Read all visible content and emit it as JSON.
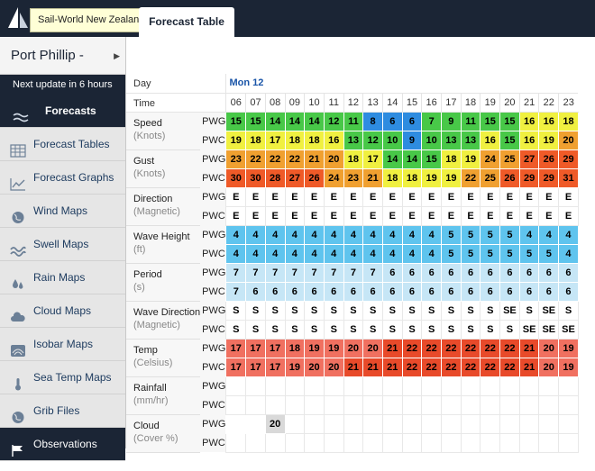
{
  "header": {
    "tooltip": "Sail-World New Zealand",
    "tab": "Forecast Table"
  },
  "sidebar": {
    "location": "Port Phillip -",
    "next_update": "Next update in 6 hours",
    "items": [
      {
        "label": "Forecasts",
        "icon": "forecasts-icon",
        "active": true
      },
      {
        "label": "Forecast Tables",
        "icon": "table-icon"
      },
      {
        "label": "Forecast Graphs",
        "icon": "graph-icon"
      },
      {
        "label": "Wind Maps",
        "icon": "globe-icon"
      },
      {
        "label": "Swell Maps",
        "icon": "swell-icon"
      },
      {
        "label": "Rain Maps",
        "icon": "rain-icon"
      },
      {
        "label": "Cloud Maps",
        "icon": "cloud-icon"
      },
      {
        "label": "Isobar Maps",
        "icon": "isobar-icon"
      },
      {
        "label": "Sea Temp Maps",
        "icon": "thermometer-icon"
      },
      {
        "label": "Grib Files",
        "icon": "globe-icon"
      },
      {
        "label": "Observations",
        "icon": "flag-icon",
        "bottom": true
      }
    ]
  },
  "table": {
    "day_label": "Day",
    "day": "Mon 12",
    "time_label": "Time",
    "hours": [
      "06",
      "07",
      "08",
      "09",
      "10",
      "11",
      "12",
      "13",
      "14",
      "15",
      "16",
      "17",
      "18",
      "19",
      "20",
      "21",
      "22",
      "23"
    ],
    "rows": [
      {
        "label": "Speed",
        "unit": "(Knots)",
        "models": [
          {
            "model": "PWG",
            "values": [
              "15",
              "15",
              "14",
              "14",
              "14",
              "12",
              "11",
              "8",
              "6",
              "6",
              "7",
              "9",
              "11",
              "15",
              "15",
              "16",
              "16",
              "18"
            ],
            "colors": [
              "#48c848",
              "#48c848",
              "#48c848",
              "#48c848",
              "#48c848",
              "#48c848",
              "#48c848",
              "#2e8ce0",
              "#2e8ce0",
              "#2e8ce0",
              "#48c848",
              "#48c848",
              "#48c848",
              "#48c848",
              "#48c848",
              "#f0f040",
              "#f0f040",
              "#f0f040"
            ]
          },
          {
            "model": "PWC",
            "values": [
              "19",
              "18",
              "17",
              "18",
              "18",
              "16",
              "13",
              "12",
              "10",
              "9",
              "10",
              "13",
              "13",
              "16",
              "15",
              "16",
              "19",
              "20"
            ],
            "colors": [
              "#f0f040",
              "#f0f040",
              "#f0f040",
              "#f0f040",
              "#f0f040",
              "#f0f040",
              "#48c848",
              "#48c848",
              "#48c848",
              "#2e8ce0",
              "#48c848",
              "#48c848",
              "#48c848",
              "#f0f040",
              "#48c848",
              "#f0f040",
              "#f0f040",
              "#f0a030"
            ]
          }
        ]
      },
      {
        "label": "Gust",
        "unit": "(Knots)",
        "models": [
          {
            "model": "PWG",
            "values": [
              "23",
              "22",
              "22",
              "22",
              "21",
              "20",
              "18",
              "17",
              "14",
              "14",
              "15",
              "18",
              "19",
              "24",
              "25",
              "27",
              "26",
              "29"
            ],
            "colors": [
              "#f0a030",
              "#f0a030",
              "#f0a030",
              "#f0a030",
              "#f0a030",
              "#f0a030",
              "#f0f040",
              "#f0f040",
              "#48c848",
              "#48c848",
              "#48c848",
              "#f0f040",
              "#f0f040",
              "#f0a030",
              "#f0a030",
              "#ef5a28",
              "#ef5a28",
              "#ef5a28"
            ]
          },
          {
            "model": "PWC",
            "values": [
              "30",
              "30",
              "28",
              "27",
              "26",
              "24",
              "23",
              "21",
              "18",
              "18",
              "19",
              "19",
              "22",
              "25",
              "26",
              "29",
              "29",
              "31"
            ],
            "colors": [
              "#ef5a28",
              "#ef5a28",
              "#ef5a28",
              "#ef5a28",
              "#ef5a28",
              "#f0a030",
              "#f0a030",
              "#f0a030",
              "#f0f040",
              "#f0f040",
              "#f0f040",
              "#f0f040",
              "#f0a030",
              "#f0a030",
              "#ef5a28",
              "#ef5a28",
              "#ef5a28",
              "#ef5a28"
            ]
          }
        ]
      },
      {
        "label": "Direction",
        "unit": "(Magnetic)",
        "models": [
          {
            "model": "PWG",
            "values": [
              "E",
              "E",
              "E",
              "E",
              "E",
              "E",
              "E",
              "E",
              "E",
              "E",
              "E",
              "E",
              "E",
              "E",
              "E",
              "E",
              "E",
              "E"
            ],
            "colors": []
          },
          {
            "model": "PWC",
            "values": [
              "E",
              "E",
              "E",
              "E",
              "E",
              "E",
              "E",
              "E",
              "E",
              "E",
              "E",
              "E",
              "E",
              "E",
              "E",
              "E",
              "E",
              "E"
            ],
            "colors": []
          }
        ]
      },
      {
        "label": "Wave Height",
        "unit": "(ft)",
        "models": [
          {
            "model": "PWG",
            "values": [
              "4",
              "4",
              "4",
              "4",
              "4",
              "4",
              "4",
              "4",
              "4",
              "4",
              "4",
              "5",
              "5",
              "5",
              "5",
              "4",
              "4",
              "4"
            ],
            "colors": [
              "#5fc4ee"
            ]
          },
          {
            "model": "PWC",
            "values": [
              "4",
              "4",
              "4",
              "4",
              "4",
              "4",
              "4",
              "4",
              "4",
              "4",
              "4",
              "5",
              "5",
              "5",
              "5",
              "5",
              "5",
              "4"
            ],
            "colors": [
              "#5fc4ee"
            ]
          }
        ]
      },
      {
        "label": "Period",
        "unit": "(s)",
        "models": [
          {
            "model": "PWG",
            "values": [
              "7",
              "7",
              "7",
              "7",
              "7",
              "7",
              "7",
              "7",
              "6",
              "6",
              "6",
              "6",
              "6",
              "6",
              "6",
              "6",
              "6",
              "6"
            ],
            "colors": [
              "#c6e6f6"
            ]
          },
          {
            "model": "PWC",
            "values": [
              "7",
              "6",
              "6",
              "6",
              "6",
              "6",
              "6",
              "6",
              "6",
              "6",
              "6",
              "6",
              "6",
              "6",
              "6",
              "6",
              "6",
              "6"
            ],
            "colors": [
              "#c6e6f6"
            ]
          }
        ]
      },
      {
        "label": "Wave Direction",
        "unit": "(Magnetic)",
        "models": [
          {
            "model": "PWG",
            "values": [
              "S",
              "S",
              "S",
              "S",
              "S",
              "S",
              "S",
              "S",
              "S",
              "S",
              "S",
              "S",
              "S",
              "S",
              "SE",
              "S",
              "SE",
              "S"
            ],
            "colors": []
          },
          {
            "model": "PWC",
            "values": [
              "S",
              "S",
              "S",
              "S",
              "S",
              "S",
              "S",
              "S",
              "S",
              "S",
              "S",
              "S",
              "S",
              "S",
              "S",
              "SE",
              "SE",
              "SE"
            ],
            "colors": []
          }
        ]
      },
      {
        "label": "Temp",
        "unit": "(Celsius)",
        "models": [
          {
            "model": "PWG",
            "values": [
              "17",
              "17",
              "17",
              "18",
              "19",
              "19",
              "20",
              "20",
              "21",
              "22",
              "22",
              "22",
              "22",
              "22",
              "22",
              "21",
              "20",
              "19"
            ],
            "colors": [
              "#f07060",
              "#f07060",
              "#f07060",
              "#f07060",
              "#f07060",
              "#f07060",
              "#f07060",
              "#f07060",
              "#e84a2a",
              "#e84a2a",
              "#e84a2a",
              "#e84a2a",
              "#e84a2a",
              "#e84a2a",
              "#e84a2a",
              "#e84a2a",
              "#f07060",
              "#f07060"
            ]
          },
          {
            "model": "PWC",
            "values": [
              "17",
              "17",
              "17",
              "19",
              "20",
              "20",
              "21",
              "21",
              "21",
              "22",
              "22",
              "22",
              "22",
              "22",
              "22",
              "21",
              "20",
              "19"
            ],
            "colors": [
              "#f07060",
              "#f07060",
              "#f07060",
              "#f07060",
              "#f07060",
              "#f07060",
              "#e84a2a",
              "#e84a2a",
              "#e84a2a",
              "#e84a2a",
              "#e84a2a",
              "#e84a2a",
              "#e84a2a",
              "#e84a2a",
              "#e84a2a",
              "#e84a2a",
              "#f07060",
              "#f07060"
            ]
          }
        ]
      },
      {
        "label": "Rainfall",
        "unit": "(mm/hr)",
        "models": [
          {
            "model": "PWG",
            "values": [
              "",
              "",
              "",
              "",
              "",
              "",
              "",
              "",
              "",
              "",
              "",
              "",
              "",
              "",
              "",
              "",
              "",
              ""
            ],
            "colors": []
          },
          {
            "model": "PWC",
            "values": [
              "",
              "",
              "",
              "",
              "",
              "",
              "",
              "",
              "",
              "",
              "",
              "",
              "",
              "",
              "",
              "",
              "",
              ""
            ],
            "colors": []
          }
        ]
      },
      {
        "label": "Cloud",
        "unit": "(Cover %)",
        "models": [
          {
            "model": "PWG",
            "values": [
              "",
              "",
              "20",
              "",
              "",
              "",
              "",
              "",
              "",
              "",
              "",
              "",
              "",
              "",
              "",
              "",
              "",
              ""
            ],
            "colors": [
              "#ffffff",
              "#ffffff",
              "#d9d9d9"
            ]
          },
          {
            "model": "PWC",
            "values": [
              "",
              "",
              "",
              "",
              "",
              "",
              "",
              "",
              "",
              "",
              "",
              "",
              "",
              "",
              "",
              "",
              "",
              ""
            ],
            "colors": []
          }
        ]
      }
    ]
  }
}
